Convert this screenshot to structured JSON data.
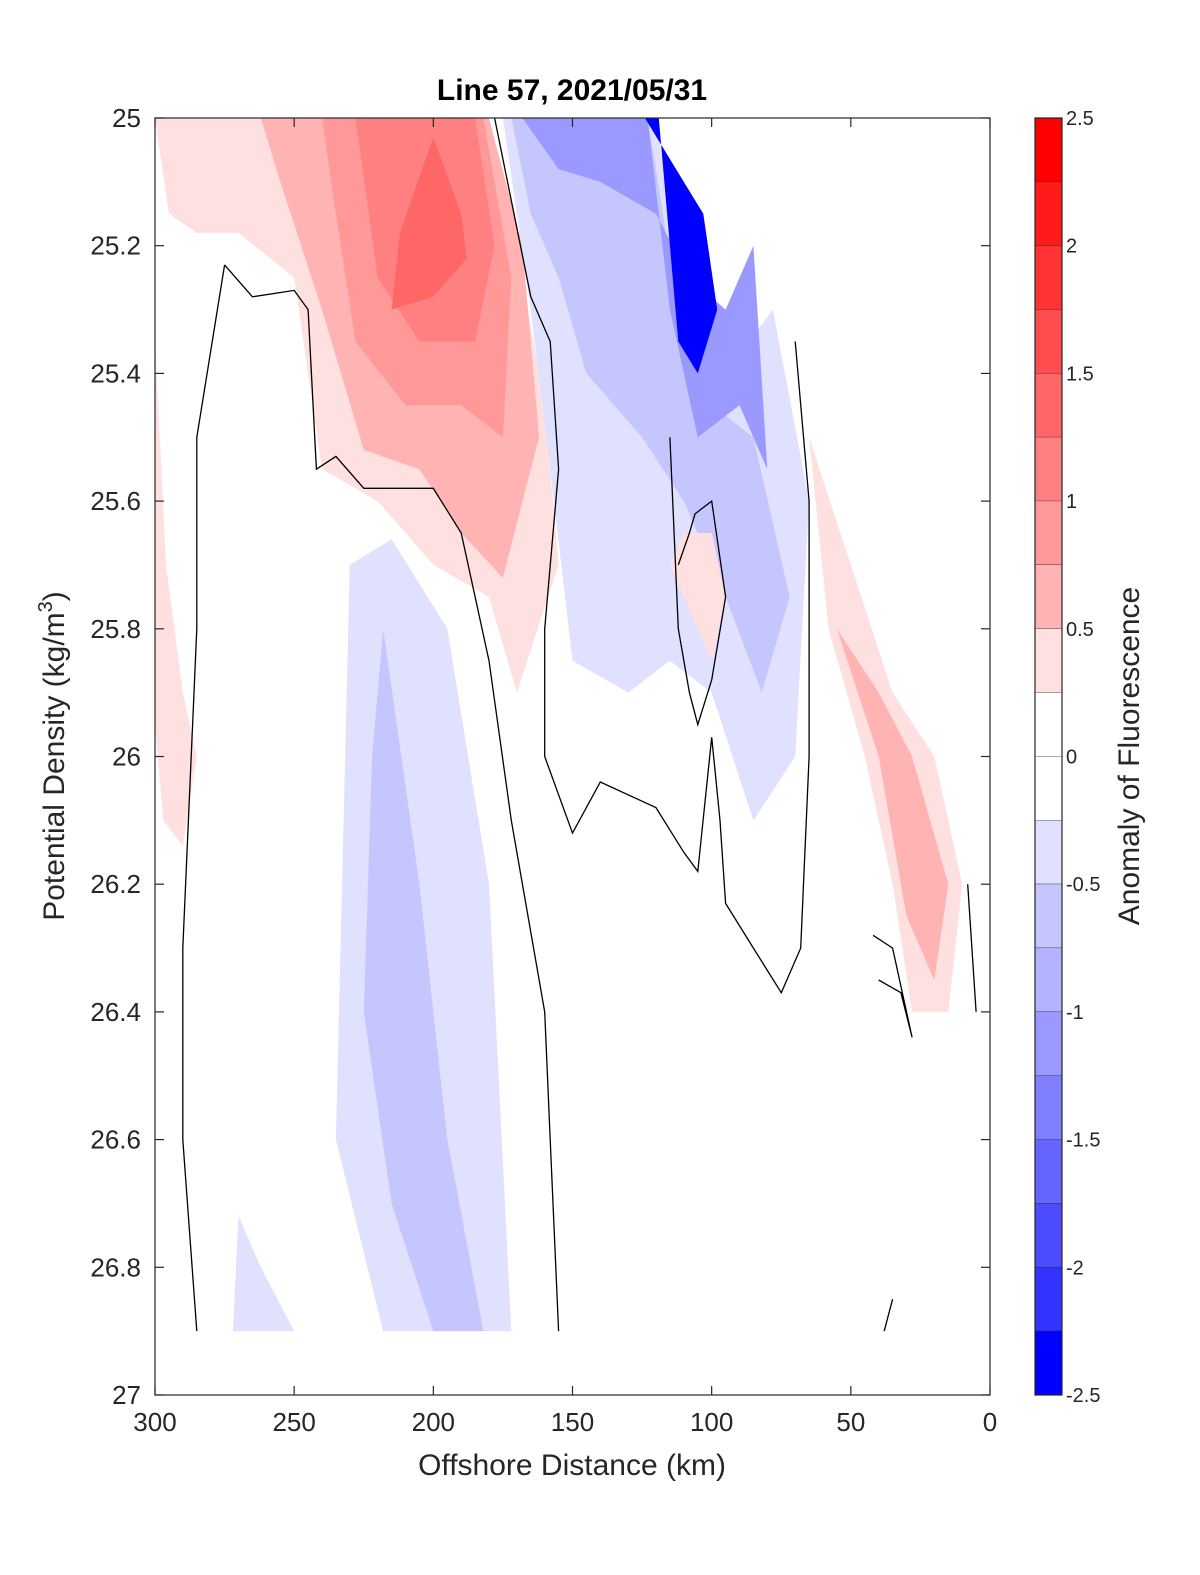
{
  "chart_data": {
    "type": "contour",
    "title": "Line 57, 2021/05/31",
    "xlabel": "Offshore Distance (km)",
    "ylabel": "Potential Density (kg/m",
    "ylabel_sup": "3",
    "ylabel_close": ")",
    "xlim": [
      300,
      0
    ],
    "ylim": [
      25,
      27
    ],
    "xticks": [
      "300",
      "250",
      "200",
      "150",
      "100",
      "50",
      "0"
    ],
    "yticks": [
      "25",
      "25.2",
      "25.4",
      "25.6",
      "25.8",
      "26",
      "26.2",
      "26.4",
      "26.6",
      "26.8",
      "27"
    ],
    "colorbar": {
      "label": "Anomaly of Fluorescence",
      "ticks": [
        "2.5",
        "2",
        "1.5",
        "1",
        "0.5",
        "0",
        "-0.5",
        "-1",
        "-1.5",
        "-2",
        "-2.5"
      ],
      "range": [
        -2.5,
        2.5
      ],
      "levels": [
        {
          "from": 2.25,
          "to": 2.5,
          "color": "#ff0000"
        },
        {
          "from": 2.0,
          "to": 2.25,
          "color": "#ff1a1a"
        },
        {
          "from": 1.75,
          "to": 2.0,
          "color": "#ff3333"
        },
        {
          "from": 1.5,
          "to": 1.75,
          "color": "#ff4d4d"
        },
        {
          "from": 1.25,
          "to": 1.5,
          "color": "#ff6666"
        },
        {
          "from": 1.0,
          "to": 1.25,
          "color": "#ff8080"
        },
        {
          "from": 0.75,
          "to": 1.0,
          "color": "#ff9999"
        },
        {
          "from": 0.5,
          "to": 0.75,
          "color": "#ffb3b3"
        },
        {
          "from": 0.25,
          "to": 0.5,
          "color": "#ffe0e0"
        },
        {
          "from": 0.0,
          "to": 0.25,
          "color": "#ffffff"
        },
        {
          "from": -0.25,
          "to": 0.0,
          "color": "#ffffff"
        },
        {
          "from": -0.5,
          "to": -0.25,
          "color": "#e0e0ff"
        },
        {
          "from": -0.75,
          "to": -0.5,
          "color": "#c6c6ff"
        },
        {
          "from": -1.0,
          "to": -0.75,
          "color": "#b3b3ff"
        },
        {
          "from": -1.25,
          "to": -1.0,
          "color": "#9999ff"
        },
        {
          "from": -1.5,
          "to": -1.25,
          "color": "#8080ff"
        },
        {
          "from": -1.75,
          "to": -1.5,
          "color": "#6666ff"
        },
        {
          "from": -2.0,
          "to": -1.75,
          "color": "#4d4dff"
        },
        {
          "from": -2.25,
          "to": -2.0,
          "color": "#3333ff"
        },
        {
          "from": -2.5,
          "to": -2.25,
          "color": "#0000ff"
        }
      ]
    },
    "regions": [
      {
        "name": "warm-core-outer",
        "level": 0.25,
        "color": "#ffe0e0",
        "points": [
          [
            300,
            25.0
          ],
          [
            180,
            25.0
          ],
          [
            170,
            25.2
          ],
          [
            160,
            25.45
          ],
          [
            155,
            25.7
          ],
          [
            170,
            25.9
          ],
          [
            180,
            25.75
          ],
          [
            200,
            25.7
          ],
          [
            220,
            25.6
          ],
          [
            240,
            25.55
          ],
          [
            250,
            25.25
          ],
          [
            270,
            25.18
          ],
          [
            285,
            25.18
          ],
          [
            295,
            25.15
          ]
        ]
      },
      {
        "name": "warm-core-mid",
        "level": 0.5,
        "color": "#ffb3b3",
        "points": [
          [
            262,
            25.0
          ],
          [
            180,
            25.0
          ],
          [
            168,
            25.2
          ],
          [
            162,
            25.5
          ],
          [
            175,
            25.72
          ],
          [
            190,
            25.65
          ],
          [
            205,
            25.55
          ],
          [
            225,
            25.52
          ],
          [
            240,
            25.3
          ],
          [
            255,
            25.1
          ]
        ]
      },
      {
        "name": "warm-core-inner",
        "level": 0.75,
        "color": "#ff9999",
        "points": [
          [
            240,
            25.0
          ],
          [
            182,
            25.0
          ],
          [
            172,
            25.25
          ],
          [
            175,
            25.5
          ],
          [
            190,
            25.45
          ],
          [
            210,
            25.45
          ],
          [
            228,
            25.35
          ],
          [
            235,
            25.15
          ]
        ]
      },
      {
        "name": "warm-core-center",
        "level": 1.0,
        "color": "#ff8080",
        "points": [
          [
            228,
            25.0
          ],
          [
            185,
            25.0
          ],
          [
            178,
            25.2
          ],
          [
            185,
            25.35
          ],
          [
            205,
            25.35
          ],
          [
            220,
            25.25
          ]
        ]
      },
      {
        "name": "warm-core-peak",
        "level": 1.25,
        "color": "#ff6666",
        "points": [
          [
            200,
            25.03
          ],
          [
            190,
            25.15
          ],
          [
            188,
            25.22
          ],
          [
            200,
            25.28
          ],
          [
            215,
            25.3
          ],
          [
            212,
            25.18
          ]
        ]
      },
      {
        "name": "left-edge-warm",
        "level": 0.25,
        "color": "#ffe0e0",
        "points": [
          [
            300,
            25.35
          ],
          [
            296,
            25.7
          ],
          [
            290,
            25.9
          ],
          [
            285,
            26.0
          ],
          [
            290,
            26.14
          ],
          [
            297,
            26.1
          ],
          [
            300,
            25.95
          ]
        ]
      },
      {
        "name": "cold-deep-outer",
        "level": -0.25,
        "color": "#e0e0ff",
        "points": [
          [
            230,
            25.7
          ],
          [
            215,
            25.66
          ],
          [
            195,
            25.8
          ],
          [
            180,
            26.2
          ],
          [
            172,
            26.9
          ],
          [
            218,
            26.9
          ],
          [
            235,
            26.6
          ]
        ]
      },
      {
        "name": "cold-deep-inner",
        "level": -0.5,
        "color": "#c6c6ff",
        "points": [
          [
            218,
            25.8
          ],
          [
            205,
            26.2
          ],
          [
            195,
            26.6
          ],
          [
            182,
            26.9
          ],
          [
            200,
            26.9
          ],
          [
            215,
            26.7
          ],
          [
            225,
            26.4
          ],
          [
            222,
            26.0
          ]
        ]
      },
      {
        "name": "cold-deep-bottom",
        "level": -0.25,
        "color": "#e0e0ff",
        "points": [
          [
            270,
            26.72
          ],
          [
            262,
            26.8
          ],
          [
            250,
            26.9
          ],
          [
            272,
            26.9
          ]
        ]
      },
      {
        "name": "cold-upper-outer",
        "level": -0.25,
        "color": "#e0e0ff",
        "points": [
          [
            175,
            25.0
          ],
          [
            120,
            25.0
          ],
          [
            110,
            25.3
          ],
          [
            95,
            25.4
          ],
          [
            78,
            25.3
          ],
          [
            65,
            25.6
          ],
          [
            70,
            26.0
          ],
          [
            85,
            26.1
          ],
          [
            100,
            25.9
          ],
          [
            115,
            25.85
          ],
          [
            130,
            25.9
          ],
          [
            150,
            25.85
          ],
          [
            158,
            25.55
          ],
          [
            165,
            25.3
          ]
        ]
      },
      {
        "name": "cold-upper-mid",
        "level": -0.5,
        "color": "#c6c6ff",
        "points": [
          [
            172,
            25.0
          ],
          [
            123,
            25.0
          ],
          [
            112,
            25.3
          ],
          [
            100,
            25.45
          ],
          [
            85,
            25.5
          ],
          [
            72,
            25.75
          ],
          [
            82,
            25.9
          ],
          [
            95,
            25.75
          ],
          [
            110,
            25.6
          ],
          [
            125,
            25.5
          ],
          [
            145,
            25.4
          ],
          [
            155,
            25.25
          ],
          [
            165,
            25.15
          ]
        ]
      },
      {
        "name": "cold-upper-core",
        "level": -1.0,
        "color": "#9999ff",
        "points": [
          [
            168,
            25.0
          ],
          [
            123,
            25.0
          ],
          [
            115,
            25.3
          ],
          [
            105,
            25.5
          ],
          [
            90,
            25.45
          ],
          [
            80,
            25.55
          ],
          [
            85,
            25.2
          ],
          [
            95,
            25.3
          ],
          [
            108,
            25.25
          ],
          [
            120,
            25.15
          ],
          [
            140,
            25.1
          ],
          [
            155,
            25.08
          ]
        ]
      },
      {
        "name": "cold-upper-peak",
        "level": -2.5,
        "color": "#0000ff",
        "points": [
          [
            124,
            25.0
          ],
          [
            119,
            25.0
          ],
          [
            115,
            25.2
          ],
          [
            112,
            25.35
          ],
          [
            105,
            25.4
          ],
          [
            98,
            25.3
          ],
          [
            103,
            25.15
          ],
          [
            110,
            25.1
          ]
        ]
      },
      {
        "name": "nearshore-warm-outer",
        "level": 0.25,
        "color": "#ffe0e0",
        "points": [
          [
            65,
            25.5
          ],
          [
            58,
            25.8
          ],
          [
            45,
            26.0
          ],
          [
            35,
            26.2
          ],
          [
            28,
            26.4
          ],
          [
            15,
            26.4
          ],
          [
            10,
            26.2
          ],
          [
            20,
            26.0
          ],
          [
            35,
            25.9
          ],
          [
            50,
            25.7
          ]
        ]
      },
      {
        "name": "nearshore-warm-inner",
        "level": 0.5,
        "color": "#ffb3b3",
        "points": [
          [
            55,
            25.8
          ],
          [
            40,
            26.0
          ],
          [
            30,
            26.25
          ],
          [
            20,
            26.35
          ],
          [
            15,
            26.2
          ],
          [
            28,
            26.0
          ],
          [
            40,
            25.9
          ]
        ]
      },
      {
        "name": "mid-warm-lens",
        "level": 0.25,
        "color": "#ffe0e0",
        "points": [
          [
            115,
            25.7
          ],
          [
            105,
            25.8
          ],
          [
            100,
            25.85
          ],
          [
            95,
            25.75
          ],
          [
            100,
            25.65
          ],
          [
            110,
            25.65
          ]
        ]
      }
    ],
    "zero_contours": [
      [
        [
          275,
          25.23
        ],
        [
          265,
          25.28
        ],
        [
          250,
          25.27
        ],
        [
          245,
          25.3
        ],
        [
          242,
          25.55
        ],
        [
          235,
          25.53
        ],
        [
          225,
          25.58
        ],
        [
          210,
          25.58
        ],
        [
          200,
          25.58
        ],
        [
          190,
          25.65
        ],
        [
          180,
          25.85
        ],
        [
          172,
          26.1
        ],
        [
          160,
          26.4
        ],
        [
          158,
          26.6
        ],
        [
          155,
          26.9
        ]
      ],
      [
        [
          178,
          25.0
        ],
        [
          165,
          25.28
        ],
        [
          158,
          25.35
        ],
        [
          155,
          25.55
        ],
        [
          160,
          25.8
        ],
        [
          160,
          26.0
        ],
        [
          150,
          26.12
        ],
        [
          140,
          26.04
        ],
        [
          120,
          26.08
        ],
        [
          110,
          26.15
        ],
        [
          105,
          26.18
        ],
        [
          100,
          25.97
        ],
        [
          97,
          26.1
        ],
        [
          95,
          26.23
        ],
        [
          85,
          26.3
        ],
        [
          75,
          26.37
        ],
        [
          68,
          26.3
        ],
        [
          65,
          26.0
        ],
        [
          65,
          25.6
        ],
        [
          70,
          25.35
        ]
      ],
      [
        [
          115,
          25.5
        ],
        [
          112,
          25.8
        ],
        [
          108,
          25.9
        ],
        [
          105,
          25.95
        ],
        [
          100,
          25.88
        ],
        [
          95,
          25.75
        ],
        [
          100,
          25.6
        ],
        [
          106,
          25.62
        ],
        [
          108,
          25.65
        ],
        [
          112,
          25.7
        ]
      ],
      [
        [
          42,
          26.28
        ],
        [
          35,
          26.3
        ],
        [
          30,
          26.4
        ],
        [
          28,
          26.44
        ],
        [
          32,
          26.37
        ],
        [
          40,
          26.35
        ]
      ],
      [
        [
          8,
          26.2
        ],
        [
          5,
          26.4
        ]
      ],
      [
        [
          38,
          26.9
        ],
        [
          35,
          26.85
        ]
      ],
      [
        [
          275,
          25.23
        ],
        [
          285,
          25.5
        ],
        [
          285,
          25.8
        ],
        [
          290,
          26.3
        ],
        [
          290,
          26.6
        ],
        [
          285,
          26.9
        ]
      ]
    ]
  }
}
